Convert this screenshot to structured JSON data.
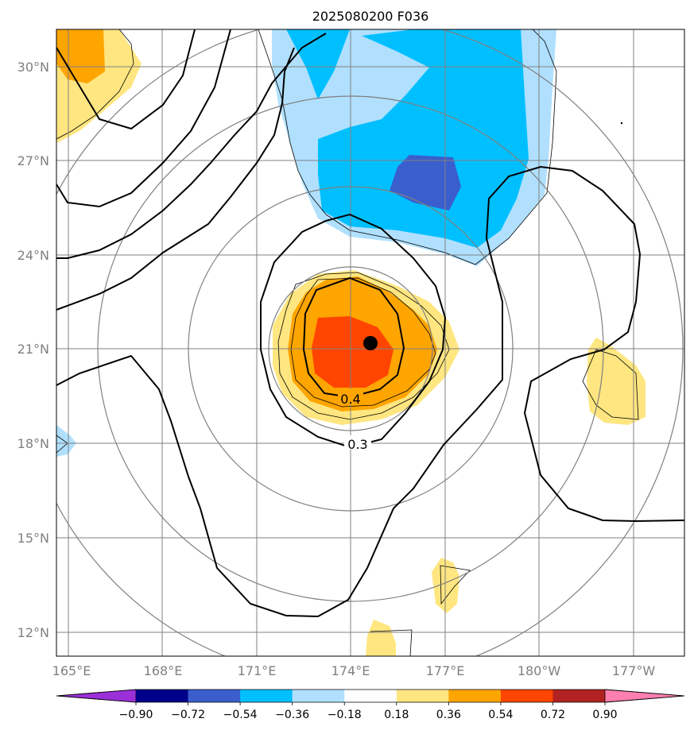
{
  "title": "2025080200 F036",
  "lat_labels": [
    "30°N",
    "27°N",
    "24°N",
    "21°N",
    "18°N",
    "15°N",
    "12°N"
  ],
  "lon_labels": [
    "165°E",
    "168°E",
    "171°E",
    "174°E",
    "177°E",
    "180°W",
    "177°W"
  ],
  "colorbar": {
    "tick_labels": [
      "−0.90",
      "−0.72",
      "−0.54",
      "−0.36",
      "−0.18",
      "0.18",
      "0.36",
      "0.54",
      "0.72",
      "0.90"
    ],
    "colors": [
      "#9b30d9",
      "#00008b",
      "#3a5fcd",
      "#00bfff",
      "#b0e0fe",
      "#ffffff",
      "#ffe680",
      "#ffa500",
      "#ff4500",
      "#b22222",
      "#ff80b0"
    ]
  },
  "contour_labels": [
    "0.4",
    "0.3"
  ],
  "fill_colors": {
    "light_blue": "#b0e0fe",
    "blue": "#00bfff",
    "dark_blue": "#3a5fcd",
    "light_yellow": "#ffe680",
    "orange": "#ffa500",
    "red_orange": "#ff4500"
  },
  "storm_center_marker": "black-dot",
  "range_ring_color": "#808080"
}
